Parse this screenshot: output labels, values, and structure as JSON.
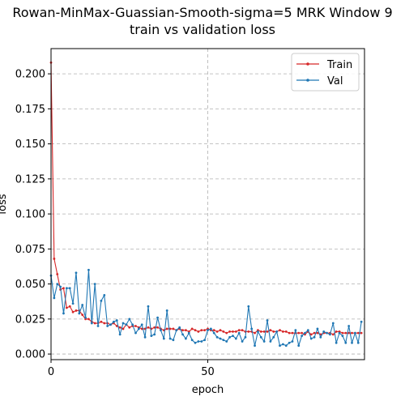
{
  "chart_data": {
    "type": "line",
    "title_line1": "Rowan-MinMax-Guassian-Smooth-sigma=5 MRK Window 9",
    "title_line2": "train vs validation loss",
    "xlabel": "epoch",
    "ylabel": "loss",
    "xlim": [
      0,
      100
    ],
    "ylim": [
      -0.004,
      0.218
    ],
    "x_ticks": [
      0,
      50
    ],
    "y_ticks": [
      "0.000",
      "0.025",
      "0.050",
      "0.075",
      "0.100",
      "0.125",
      "0.150",
      "0.175",
      "0.200"
    ],
    "grid": true,
    "legend_position": "top-right",
    "series": [
      {
        "name": "Train",
        "color": "#d62728",
        "values": [
          0.208,
          0.068,
          0.057,
          0.046,
          0.047,
          0.033,
          0.034,
          0.03,
          0.031,
          0.031,
          0.028,
          0.025,
          0.025,
          0.023,
          0.022,
          0.022,
          0.023,
          0.022,
          0.022,
          0.021,
          0.022,
          0.02,
          0.019,
          0.018,
          0.021,
          0.019,
          0.02,
          0.02,
          0.019,
          0.018,
          0.018,
          0.019,
          0.018,
          0.019,
          0.019,
          0.018,
          0.017,
          0.018,
          0.018,
          0.018,
          0.017,
          0.018,
          0.017,
          0.017,
          0.016,
          0.018,
          0.017,
          0.016,
          0.017,
          0.017,
          0.018,
          0.017,
          0.017,
          0.016,
          0.017,
          0.016,
          0.015,
          0.016,
          0.016,
          0.016,
          0.017,
          0.017,
          0.016,
          0.016,
          0.016,
          0.015,
          0.017,
          0.016,
          0.016,
          0.016,
          0.017,
          0.016,
          0.016,
          0.017,
          0.016,
          0.016,
          0.015,
          0.015,
          0.015,
          0.015,
          0.015,
          0.014,
          0.016,
          0.014,
          0.015,
          0.015,
          0.014,
          0.015,
          0.015,
          0.015,
          0.014,
          0.016,
          0.016,
          0.015,
          0.015,
          0.015,
          0.015,
          0.015,
          0.015,
          0.015
        ]
      },
      {
        "name": "Val",
        "color": "#1f77b4",
        "values": [
          0.056,
          0.04,
          0.05,
          0.048,
          0.029,
          0.047,
          0.047,
          0.036,
          0.058,
          0.029,
          0.035,
          0.026,
          0.06,
          0.022,
          0.05,
          0.02,
          0.038,
          0.042,
          0.02,
          0.021,
          0.023,
          0.024,
          0.014,
          0.022,
          0.021,
          0.025,
          0.021,
          0.015,
          0.018,
          0.021,
          0.012,
          0.034,
          0.013,
          0.014,
          0.026,
          0.017,
          0.011,
          0.031,
          0.011,
          0.01,
          0.017,
          0.019,
          0.014,
          0.011,
          0.015,
          0.01,
          0.008,
          0.009,
          0.009,
          0.01,
          0.017,
          0.018,
          0.015,
          0.012,
          0.011,
          0.01,
          0.009,
          0.012,
          0.013,
          0.011,
          0.015,
          0.009,
          0.012,
          0.034,
          0.018,
          0.006,
          0.016,
          0.012,
          0.009,
          0.024,
          0.009,
          0.012,
          0.016,
          0.006,
          0.007,
          0.006,
          0.008,
          0.009,
          0.017,
          0.006,
          0.013,
          0.015,
          0.017,
          0.011,
          0.012,
          0.018,
          0.012,
          0.016,
          0.015,
          0.014,
          0.022,
          0.008,
          0.015,
          0.013,
          0.008,
          0.02,
          0.008,
          0.015,
          0.008,
          0.023
        ]
      }
    ]
  }
}
